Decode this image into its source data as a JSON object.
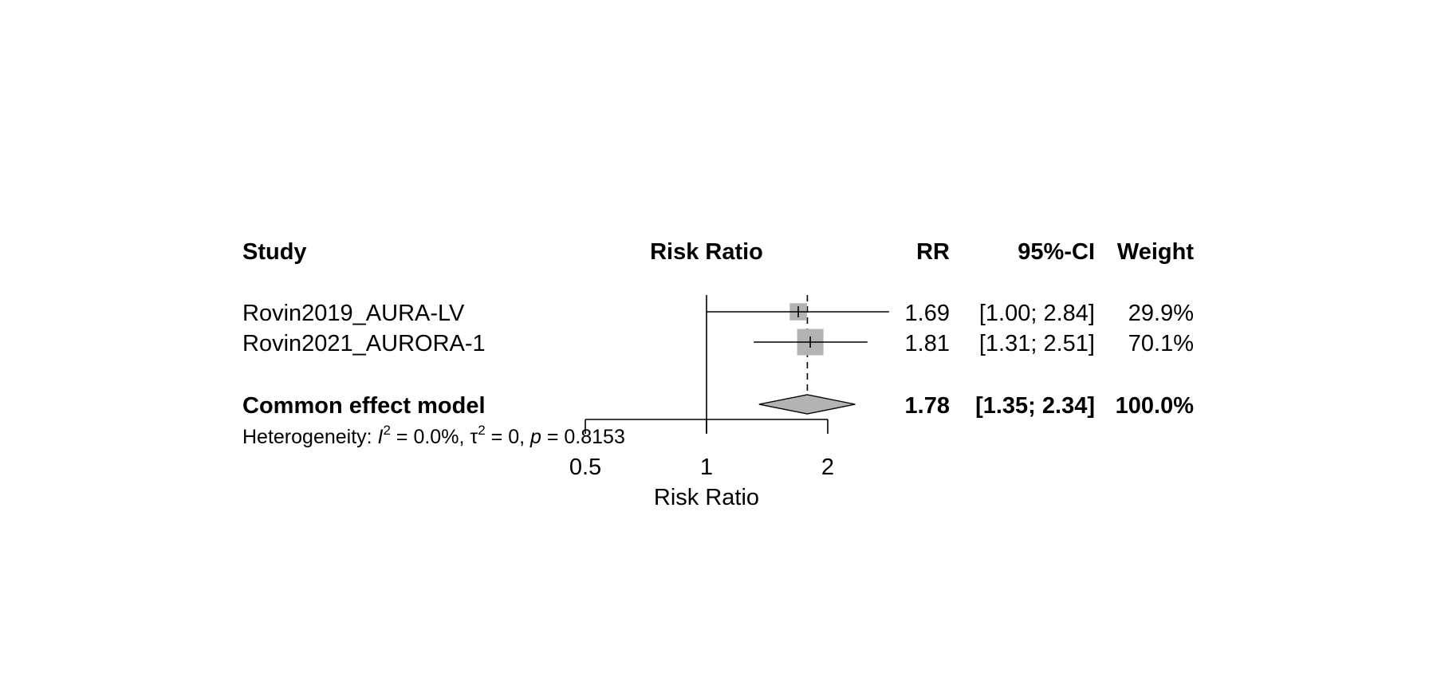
{
  "chart_data": {
    "type": "forest",
    "headers": {
      "study": "Study",
      "plot": "Risk Ratio",
      "rr": "RR",
      "ci": "95%-CI",
      "weight": "Weight"
    },
    "studies": [
      {
        "name": "Rovin2019_AURA-LV",
        "rr": 1.69,
        "lower": 1.0,
        "upper": 2.84,
        "rr_text": "1.69",
        "ci_text": "[1.00; 2.84]",
        "weight": 29.9,
        "weight_text": "29.9%"
      },
      {
        "name": "Rovin2021_AURORA-1",
        "rr": 1.81,
        "lower": 1.31,
        "upper": 2.51,
        "rr_text": "1.81",
        "ci_text": "[1.31; 2.51]",
        "weight": 70.1,
        "weight_text": "70.1%"
      }
    ],
    "pooled": {
      "name": "Common effect model",
      "rr": 1.78,
      "lower": 1.35,
      "upper": 2.34,
      "rr_text": "1.78",
      "ci_text": "[1.35; 2.34]",
      "weight_text": "100.0%"
    },
    "heterogeneity": {
      "prefix": "Heterogeneity: ",
      "i2_symbol": "I",
      "i2_text": " = 0.0%, ",
      "tau2_symbol": "τ",
      "tau2_text": " = 0, ",
      "p_symbol": "p",
      "p_text": " = 0.8153",
      "superscript": "2"
    },
    "x_axis": {
      "scale": "log",
      "range": [
        0.5,
        2
      ],
      "ticks": [
        0.5,
        1,
        2
      ],
      "tick_labels": [
        "0.5",
        "1",
        "2"
      ],
      "label": "Risk Ratio",
      "reference_line": 1
    },
    "colors": {
      "square": "#b3b3b3",
      "diamond": "#b3b3b3",
      "line": "#000000"
    }
  }
}
